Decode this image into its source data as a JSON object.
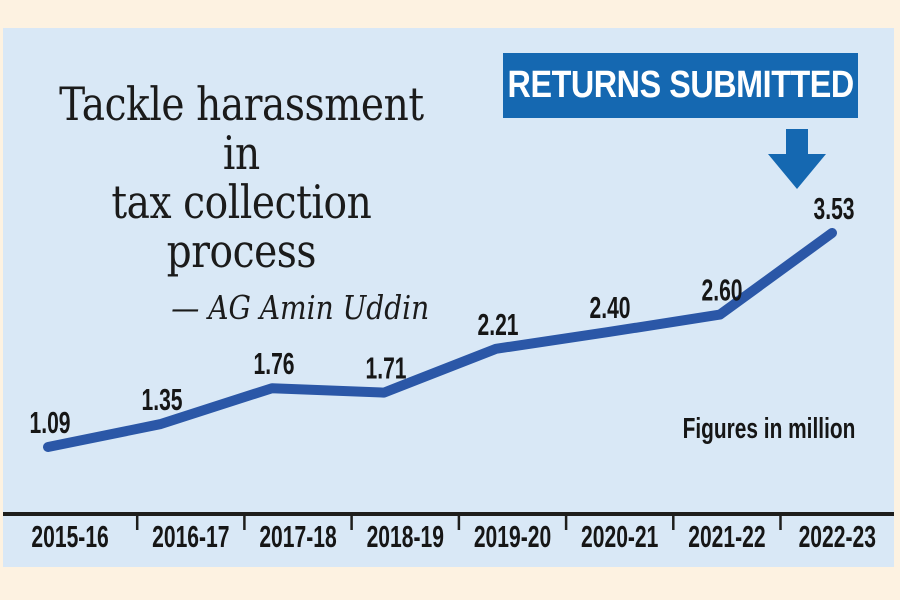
{
  "page": {
    "background": "#fdf2e1",
    "panel_background": "#d9e8f6",
    "text_color": "#1b1b1b"
  },
  "header": {
    "quote_line1": "Tackle harassment in",
    "quote_line2": "tax collection process",
    "attribution": "— AG Amin Uddin"
  },
  "banner": {
    "label": "RETURNS SUBMITTED",
    "background": "#1568b1",
    "text_color": "#ffffff",
    "arrow_icon": "down-arrow"
  },
  "chart_data": {
    "type": "line",
    "title": "RETURNS SUBMITTED",
    "unit_note": "Figures in million",
    "categories": [
      "2015-16",
      "2016-17",
      "2017-18",
      "2018-19",
      "2019-20",
      "2020-21",
      "2021-22",
      "2022-23"
    ],
    "values": [
      1.09,
      1.35,
      1.76,
      1.71,
      2.21,
      2.4,
      2.6,
      3.53
    ],
    "ylim": [
      0.3,
      5.9
    ],
    "grid": false,
    "legend": false,
    "value_label_position": "above-points",
    "line_color": "#2b57a7",
    "axis_color": "#1e1e1c",
    "label_color": "#161616"
  }
}
